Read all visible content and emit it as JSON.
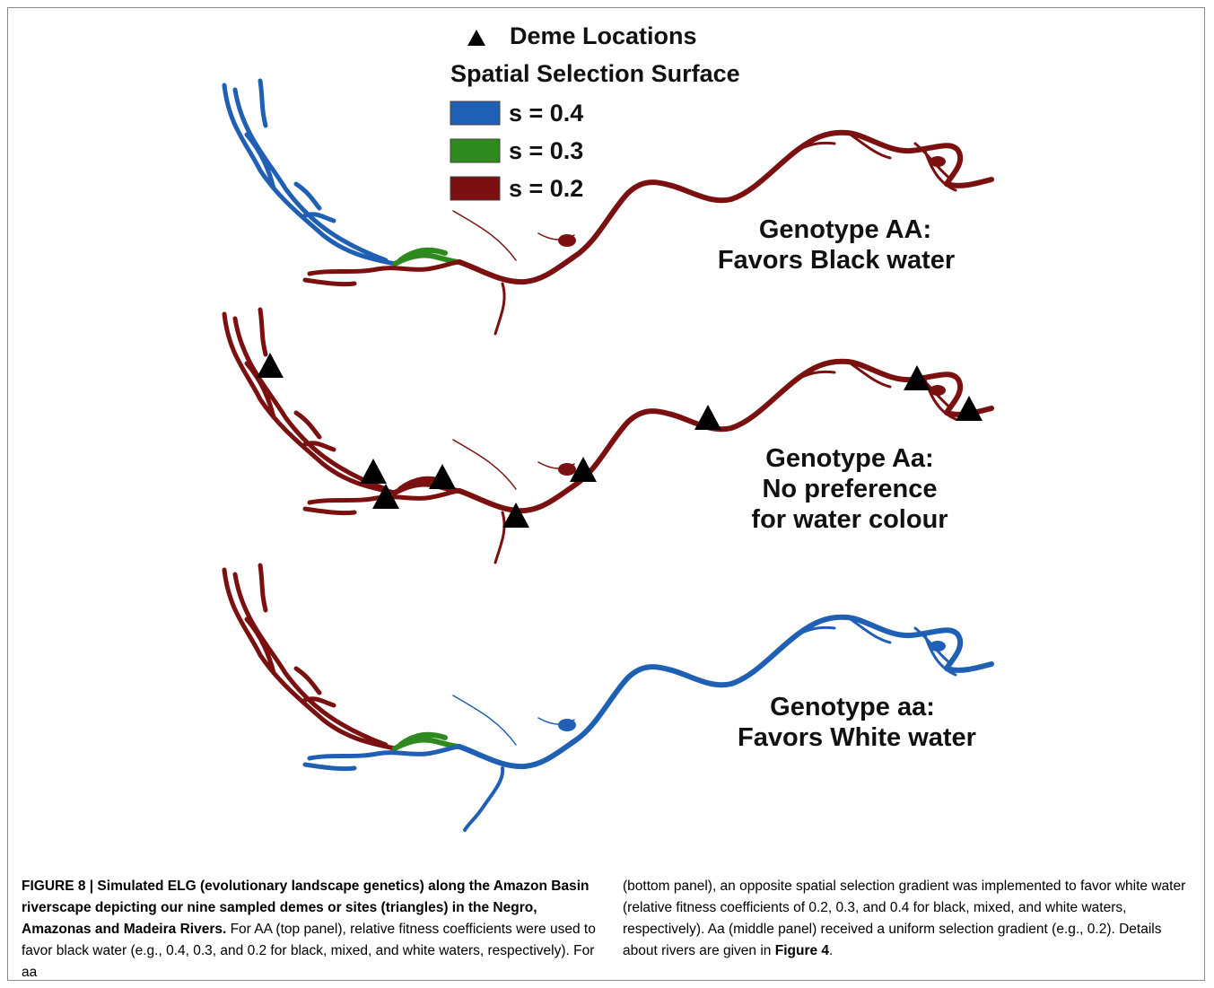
{
  "legend": {
    "deme_label": "Deme Locations",
    "surface_title": "Spatial Selection Surface",
    "items": [
      {
        "label": "s = 0.4",
        "color": "#1f5fb4"
      },
      {
        "label": "s = 0.3",
        "color": "#2e8a1e"
      },
      {
        "label": "s = 0.2",
        "color": "#7a1010"
      }
    ]
  },
  "colors": {
    "black_water": "#1f5fb4",
    "mixed_water": "#2e8a1e",
    "white_water": "#7a1010",
    "deme_marker": "#000000"
  },
  "panels": [
    {
      "id": "AA",
      "label_line1": "Genotype AA:",
      "label_line2": "Favors Black water",
      "label_line3": "",
      "negro": "s = 0.4",
      "mixed": "s = 0.3",
      "amazon": "s = 0.2",
      "demes_shown": false
    },
    {
      "id": "Aa",
      "label_line1": "Genotype Aa:",
      "label_line2": "No preference",
      "label_line3": "for water colour",
      "negro": "s = 0.2",
      "mixed": "s = 0.2",
      "amazon": "s = 0.2",
      "demes_shown": true
    },
    {
      "id": "aa",
      "label_line1": "Genotype aa:",
      "label_line2": "Favors White water",
      "label_line3": "",
      "negro": "s = 0.2",
      "mixed": "s = 0.3",
      "amazon": "s = 0.4",
      "demes_shown": false
    }
  ],
  "caption": {
    "bold": "FIGURE 8 | Simulated ELG (evolutionary landscape genetics) along the Amazon Basin riverscape depicting our nine sampled demes or sites (triangles) in the Negro, Amazonas and Madeira Rivers.",
    "text_left": "For AA (top panel), relative fitness coefficients were used to favor black water (e.g., 0.4, 0.3, and 0.2 for black, mixed, and white waters, respectively). For aa",
    "text_right": "(bottom panel), an opposite spatial selection gradient was implemented to favor white water (relative fitness coefficients of 0.2, 0.3, and 0.4 for black, mixed, and white waters, respectively). Aa (middle panel) received a uniform selection gradient (e.g., 0.2). Details about rivers are given in",
    "figure_ref": "Figure 4",
    "end": "."
  }
}
